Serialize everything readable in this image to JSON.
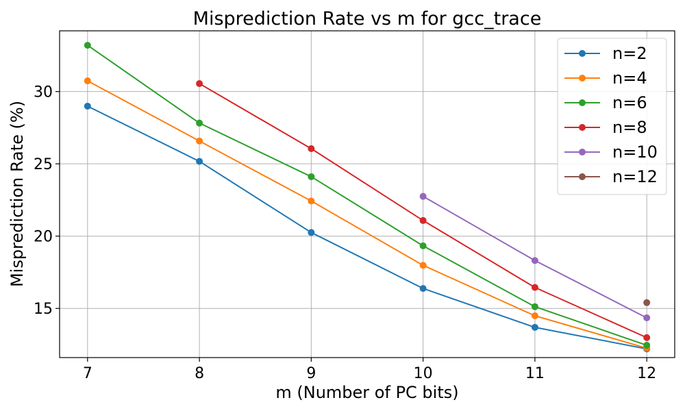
{
  "chart_data": {
    "type": "line",
    "title": "Misprediction Rate vs m for gcc_trace",
    "xlabel": "m (Number of PC bits)",
    "ylabel": "Misprediction Rate (%)",
    "x": [
      7,
      8,
      9,
      10,
      11,
      12
    ],
    "x_ticks": [
      "7",
      "8",
      "9",
      "10",
      "11",
      "12"
    ],
    "y_ticks": [
      "15",
      "20",
      "25",
      "30"
    ],
    "y_tick_values": [
      15,
      20,
      25,
      30
    ],
    "xlim": [
      6.75,
      12.25
    ],
    "ylim": [
      11.6,
      34.2
    ],
    "grid": true,
    "legend_position": "top-right",
    "series": [
      {
        "name": "n=2",
        "color": "#1f77b4",
        "values": [
          28.99,
          25.17,
          20.25,
          16.38,
          13.69,
          12.2
        ]
      },
      {
        "name": "n=4",
        "color": "#ff7f0e",
        "values": [
          30.74,
          26.58,
          22.43,
          17.98,
          14.49,
          12.25
        ]
      },
      {
        "name": "n=6",
        "color": "#2ca02c",
        "values": [
          33.2,
          27.82,
          24.11,
          19.33,
          15.12,
          12.45
        ]
      },
      {
        "name": "n=8",
        "color": "#d62728",
        "values": [
          null,
          30.55,
          26.05,
          21.08,
          16.45,
          12.98
        ]
      },
      {
        "name": "n=10",
        "color": "#9467bd",
        "values": [
          null,
          null,
          null,
          22.75,
          18.31,
          14.35
        ]
      },
      {
        "name": "n=12",
        "color": "#8c564b",
        "values": [
          null,
          null,
          null,
          null,
          null,
          15.4
        ]
      }
    ]
  }
}
